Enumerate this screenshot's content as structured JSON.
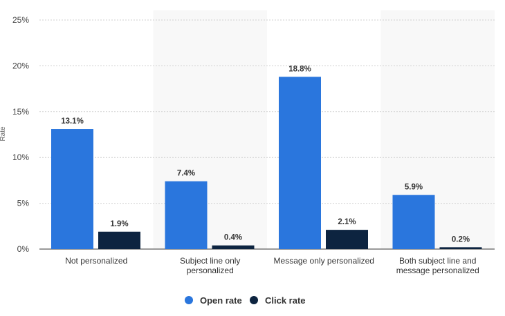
{
  "chart_data": {
    "type": "bar",
    "title": "",
    "xlabel": "",
    "ylabel": "Rate",
    "ylim": [
      0,
      25
    ],
    "y_ticks": [
      "0%",
      "5%",
      "10%",
      "15%",
      "20%",
      "25%"
    ],
    "y_tick_values": [
      0,
      5,
      10,
      15,
      20,
      25
    ],
    "grid": true,
    "legend_position": "bottom",
    "categories": [
      [
        "Not personalized"
      ],
      [
        "Subject line only",
        "personalized"
      ],
      [
        "Message only personalized"
      ],
      [
        "Both subject line and",
        "message personalized"
      ]
    ],
    "series": [
      {
        "name": "Open rate",
        "color": "#2a76dd",
        "values": [
          13.1,
          7.4,
          18.8,
          5.9
        ],
        "labels": [
          "13.1%",
          "7.4%",
          "18.8%",
          "5.9%"
        ]
      },
      {
        "name": "Click rate",
        "color": "#0d2440",
        "values": [
          1.9,
          0.4,
          2.1,
          0.2
        ],
        "labels": [
          "1.9%",
          "0.4%",
          "2.1%",
          "0.2%"
        ]
      }
    ],
    "band_colors": [
      "#f8f8f8"
    ],
    "gridline_color": "#cfcfcf"
  }
}
